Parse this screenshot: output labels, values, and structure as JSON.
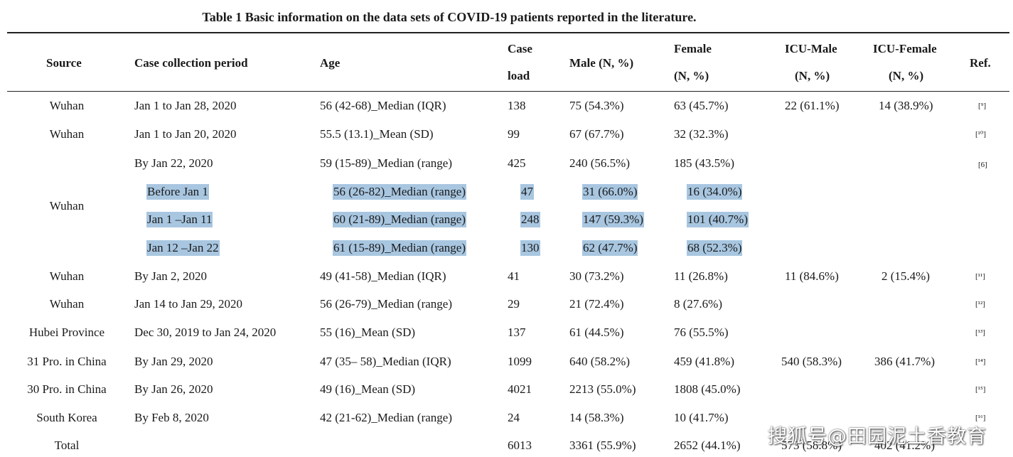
{
  "title": "Table 1 Basic information on the data sets of COVID-19 patients reported in the literature.",
  "headers": {
    "source": "Source",
    "period": "Case collection period",
    "age": "Age",
    "case_1": "Case",
    "case_2": "load",
    "male": "Male (N, %)",
    "female_1": "Female",
    "female_2": "(N, %)",
    "icu_male_1": "ICU-Male",
    "icu_male_2": "(N, %)",
    "icu_female_1": "ICU-Female",
    "icu_female_2": "(N, %)",
    "ref": "Ref."
  },
  "rows": [
    {
      "source": "Wuhan",
      "period": "Jan 1 to Jan 28, 2020",
      "age": "56 (42-68)_Median (IQR)",
      "case": "138",
      "male": "75 (54.3%)",
      "female": "63 (45.7%)",
      "icu_male": "22 (61.1%)",
      "icu_female": "14 (38.9%)",
      "ref": "[⁹]"
    },
    {
      "source": "Wuhan",
      "period": "Jan 1 to Jan 20, 2020",
      "age": "55.5 (13.1)_Mean (SD)",
      "case": "99",
      "male": "67 (67.7%)",
      "female": "32 (32.3%)",
      "icu_male": "",
      "icu_female": "",
      "ref": "[¹⁰]"
    },
    {
      "source": "",
      "period": "By Jan 22, 2020",
      "age": "59 (15-89)_Median (range)",
      "case": "425",
      "male": "240 (56.5%)",
      "female": "185 (43.5%)",
      "icu_male": "",
      "icu_female": "",
      "ref": "[6]"
    },
    {
      "source": "",
      "period": "Before Jan 1",
      "age": "56 (26-82)_Median (range)",
      "case": "47",
      "male": "31 (66.0%)",
      "female": "16 (34.0%)",
      "icu_male": "",
      "icu_female": "",
      "ref": ""
    },
    {
      "source": "",
      "period": "Jan 1 –Jan 11",
      "age": "60 (21-89)_Median (range)",
      "case": "248",
      "male": "147 (59.3%)",
      "female": "101 (40.7%)",
      "icu_male": "",
      "icu_female": "",
      "ref": ""
    },
    {
      "source": "",
      "period": "Jan 12 –Jan 22",
      "age": "61 (15-89)_Median (range)",
      "case": "130",
      "male": "62 (47.7%)",
      "female": "68 (52.3%)",
      "icu_male": "",
      "icu_female": "",
      "ref": ""
    },
    {
      "source": "Wuhan",
      "period": "By Jan 2, 2020",
      "age": "49 (41-58)_Median (IQR)",
      "case": "41",
      "male": "30 (73.2%)",
      "female": "11 (26.8%)",
      "icu_male": "11 (84.6%)",
      "icu_female": "2 (15.4%)",
      "ref": "[¹¹]"
    },
    {
      "source": "Wuhan",
      "period": "Jan 14 to Jan 29, 2020",
      "age": "56 (26-79)_Median (range)",
      "case": "29",
      "male": "21 (72.4%)",
      "female": "8 (27.6%)",
      "icu_male": "",
      "icu_female": "",
      "ref": "[¹²]"
    },
    {
      "source": "Hubei Province",
      "period": "Dec 30, 2019 to Jan 24, 2020",
      "age": "55 (16)_Mean (SD)",
      "case": "137",
      "male": "61 (44.5%)",
      "female": "76 (55.5%)",
      "icu_male": "",
      "icu_female": "",
      "ref": "[¹³]"
    },
    {
      "source": "31 Pro. in China",
      "period": "By Jan 29, 2020",
      "age": "47 (35– 58)_Median (IQR)",
      "case": "1099",
      "male": "640 (58.2%)",
      "female": "459 (41.8%)",
      "icu_male": "540 (58.3%)",
      "icu_female": "386 (41.7%)",
      "ref": "[¹⁴]"
    },
    {
      "source": "30 Pro. in China",
      "period": "By Jan 26, 2020",
      "age": "49 (16)_Mean (SD)",
      "case": "4021",
      "male": "2213 (55.0%)",
      "female": "1808 (45.0%)",
      "icu_male": "",
      "icu_female": "",
      "ref": "[¹⁵]"
    },
    {
      "source": "South Korea",
      "period": "By Feb 8, 2020",
      "age": "42 (21-62)_Median (range)",
      "case": "24",
      "male": "14 (58.3%)",
      "female": "10 (41.7%)",
      "icu_male": "",
      "icu_female": "",
      "ref": "[¹⁶]"
    },
    {
      "source": "Total",
      "period": "",
      "age": "",
      "case": "6013",
      "male": "3361 (55.9%)",
      "female": "2652 (44.1%)",
      "icu_male": "573 (58.8%)",
      "icu_female": "402 (41.2%)",
      "ref": ""
    }
  ],
  "merged_source": "Wuhan",
  "watermark": "搜狐号@田园泥土香教育"
}
